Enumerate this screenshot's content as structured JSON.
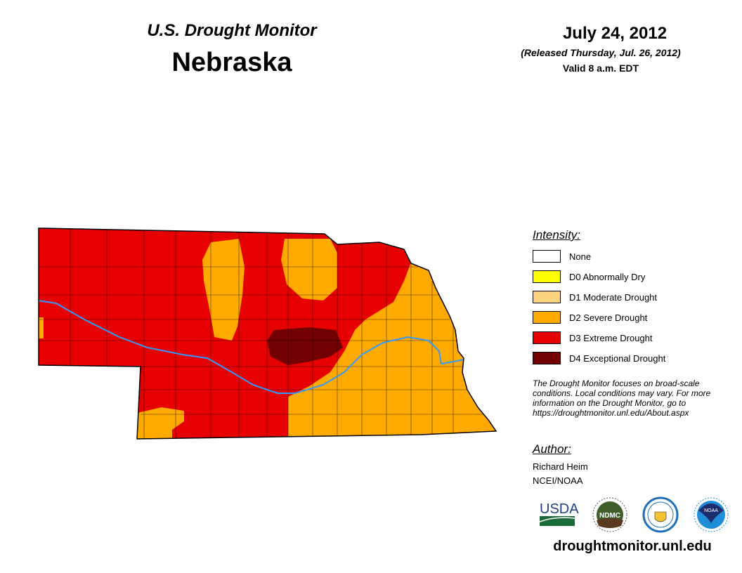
{
  "header": {
    "title": "U.S. Drought Monitor",
    "state": "Nebraska",
    "date": "July 24, 2012",
    "released": "(Released Thursday, Jul. 26, 2012)",
    "valid": "Valid 8 a.m. EDT"
  },
  "legend": {
    "title": "Intensity:",
    "items": [
      {
        "label": "None",
        "color": "#ffffff"
      },
      {
        "label": "D0 Abnormally Dry",
        "color": "#ffff00"
      },
      {
        "label": "D1 Moderate Drought",
        "color": "#fcd37f"
      },
      {
        "label": "D2 Severe Drought",
        "color": "#ffaa00"
      },
      {
        "label": "D3 Extreme Drought",
        "color": "#e60000"
      },
      {
        "label": "D4 Exceptional Drought",
        "color": "#730000"
      }
    ]
  },
  "note": "The Drought Monitor focuses on broad-scale conditions. Local conditions may vary. For more information on the Drought Monitor, go to https://droughtmonitor.unl.edu/About.aspx",
  "author": {
    "title": "Author:",
    "name": "Richard Heim",
    "org": "NCEI/NOAA"
  },
  "logos": [
    "USDA",
    "NDMC",
    "DOC",
    "NOAA"
  ],
  "footer": {
    "url": "droughtmonitor.unl.edu"
  },
  "colors": {
    "river": "#3399ff"
  }
}
